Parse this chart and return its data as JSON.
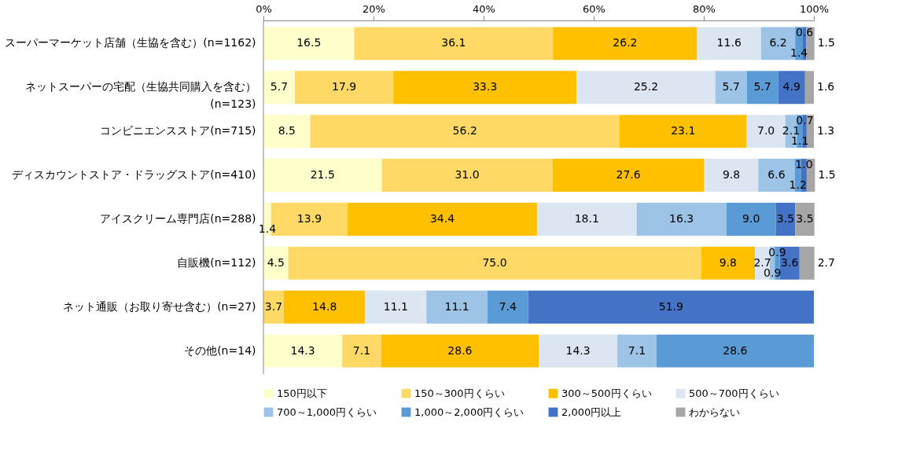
{
  "chart_data": {
    "type": "bar",
    "orientation": "horizontal",
    "stacked": true,
    "categories": [
      "スーパーマーケット店舗（生協を含む）(n=1162)",
      "ネットスーパーの宅配（生協共同購入を含む）\n(n=123)",
      "コンビニエンスストア(n=715)",
      "ディスカウントストア・ドラッグストア(n=410)",
      "アイスクリーム専門店(n=288)",
      "自販機(n=112)",
      "ネット通販（お取り寄せ含む）(n=27)",
      "その他(n=14)"
    ],
    "series": [
      {
        "name": "150円以下",
        "color": "#ffffcc",
        "values": [
          16.5,
          5.7,
          8.5,
          21.5,
          1.4,
          4.5,
          0,
          14.3
        ],
        "value_labels": [
          "16.5",
          "5.7",
          "8.5",
          "21.5",
          "1.4",
          "4.5",
          null,
          "14.3"
        ]
      },
      {
        "name": "150～300円くらい",
        "color": "#ffd966",
        "values": [
          36.1,
          17.9,
          56.2,
          31.0,
          13.9,
          75.0,
          3.7,
          7.1
        ],
        "value_labels": [
          "36.1",
          "17.9",
          "56.2",
          "31.0",
          "13.9",
          "75.0",
          "3.7",
          "7.1"
        ]
      },
      {
        "name": "300～500円くらい",
        "color": "#ffc000",
        "values": [
          26.2,
          33.3,
          23.1,
          27.6,
          34.4,
          9.8,
          14.8,
          28.6
        ],
        "value_labels": [
          "26.2",
          "33.3",
          "23.1",
          "27.6",
          "34.4",
          "9.8",
          "14.8",
          "28.6"
        ]
      },
      {
        "name": "500～700円くらい",
        "color": "#dce6f2",
        "values": [
          11.6,
          25.2,
          7.0,
          9.8,
          18.1,
          2.7,
          11.1,
          14.3
        ],
        "value_labels": [
          "11.6",
          "25.2",
          "7.0",
          "9.8",
          "18.1",
          "2.7",
          "11.1",
          "14.3"
        ]
      },
      {
        "name": "700～1,000円くらい",
        "color": "#9dc3e6",
        "values": [
          6.2,
          5.7,
          2.1,
          6.6,
          16.3,
          0.9,
          11.1,
          7.1
        ],
        "value_labels": [
          "6.2",
          "5.7",
          "2.1",
          "6.6",
          "16.3",
          "0.9",
          "11.1",
          "7.1"
        ]
      },
      {
        "name": "1,000～2,000円くらい",
        "color": "#5b9bd5",
        "values": [
          1.4,
          5.7,
          1.1,
          1.2,
          9.0,
          0.9,
          7.4,
          28.6
        ],
        "value_labels": [
          "1.4",
          "5.7",
          "1.1",
          "1.2",
          "9.0",
          "0.9",
          "7.4",
          "28.6"
        ]
      },
      {
        "name": "2,000円以上",
        "color": "#4472c4",
        "values": [
          0.6,
          4.9,
          0.7,
          1.0,
          3.5,
          3.6,
          51.9,
          0
        ],
        "value_labels": [
          "0.6",
          "4.9",
          "0.7",
          "1.0",
          "3.5",
          "3.6",
          "51.9",
          null
        ]
      },
      {
        "name": "わからない",
        "color": "#a6a6a6",
        "values": [
          1.5,
          1.6,
          1.3,
          1.5,
          3.5,
          2.7,
          0,
          0
        ],
        "value_labels": [
          "1.5",
          "1.6",
          "1.3",
          "1.5",
          "3.5",
          "2.7",
          null,
          null
        ]
      }
    ],
    "xlim": [
      0,
      100
    ],
    "xticks": [
      {
        "value": 0,
        "label": "0%"
      },
      {
        "value": 20,
        "label": "20%"
      },
      {
        "value": 40,
        "label": "40%"
      },
      {
        "value": 60,
        "label": "60%"
      },
      {
        "value": 80,
        "label": "80%"
      },
      {
        "value": 100,
        "label": "100%"
      }
    ],
    "legend": "bottom",
    "grid": false
  }
}
